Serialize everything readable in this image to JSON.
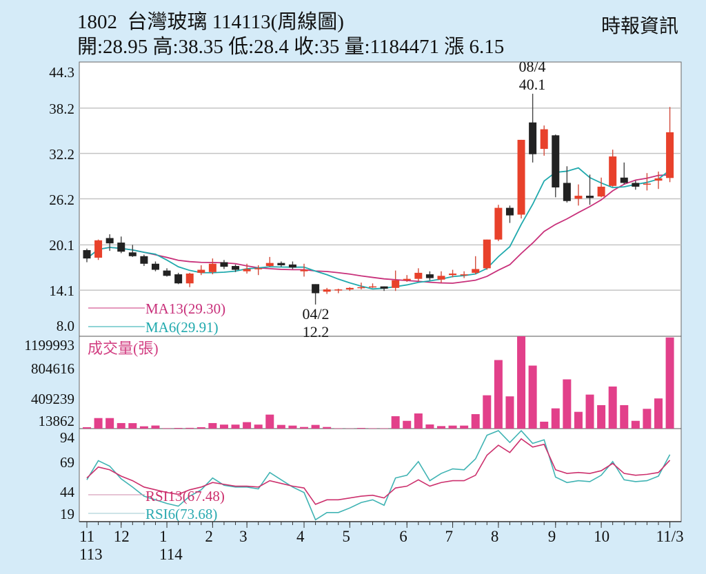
{
  "header": {
    "title": "1802  台灣玻璃 114113(周線圖)",
    "ohlc_line": "開:28.95 高:38.35 低:28.4 收:35 量:1184471 漲 6.15",
    "source": "時報資訊"
  },
  "colors": {
    "up": "#e8412b",
    "down": "#222222",
    "volume": "#e2408a",
    "ma13": "#c8307a",
    "ma6": "#1fa9ad",
    "rsi13": "#cc2f6c",
    "rsi6": "#3fb3b3",
    "background": "#d5ebf8"
  },
  "chart_data": [
    {
      "type": "candlestick",
      "ylim": [
        8.0,
        44.3
      ],
      "y_ticks": [
        "44.3",
        "38.2",
        "32.2",
        "26.2",
        "20.1",
        "14.1",
        "8.0"
      ],
      "grid": true,
      "legend": [
        "MA13(29.30)",
        "MA6(29.91)"
      ],
      "annotations": [
        {
          "date": "08/4",
          "value": "40.1"
        },
        {
          "date": "04/2",
          "value": "12.2"
        }
      ],
      "ohlc": [
        [
          19.4,
          18.3,
          19.6,
          17.8
        ],
        [
          18.4,
          20.7,
          20.8,
          18.1
        ],
        [
          21.0,
          20.3,
          21.5,
          19.3
        ],
        [
          20.4,
          19.2,
          21.2,
          19.0
        ],
        [
          19.1,
          18.6,
          20.1,
          18.5
        ],
        [
          18.6,
          17.6,
          18.8,
          17.3
        ],
        [
          17.6,
          16.8,
          17.9,
          16.6
        ],
        [
          16.7,
          16.0,
          17.0,
          15.9
        ],
        [
          16.2,
          15.0,
          16.4,
          14.9
        ],
        [
          15.0,
          16.3,
          16.4,
          14.5
        ],
        [
          16.4,
          16.8,
          17.4,
          16.1
        ],
        [
          16.5,
          17.6,
          18.3,
          16.2
        ],
        [
          17.8,
          17.2,
          18.1,
          16.9
        ],
        [
          17.3,
          16.8,
          17.5,
          16.5
        ],
        [
          16.6,
          16.9,
          17.6,
          16.3
        ],
        [
          17.0,
          17.0,
          17.4,
          16.1
        ],
        [
          17.3,
          17.7,
          18.5,
          17.2
        ],
        [
          17.7,
          17.4,
          17.9,
          17.2
        ],
        [
          17.5,
          17.1,
          17.9,
          16.9
        ],
        [
          16.6,
          16.8,
          17.6,
          15.9
        ],
        [
          14.9,
          13.7,
          14.9,
          12.2
        ],
        [
          13.9,
          14.2,
          14.4,
          13.6
        ],
        [
          14.2,
          14.2,
          14.3,
          13.7
        ],
        [
          14.2,
          14.4,
          14.5,
          14.0
        ],
        [
          14.5,
          14.5,
          15.1,
          14.2
        ],
        [
          14.6,
          14.6,
          15.0,
          14.4
        ],
        [
          14.6,
          14.3,
          14.6,
          14.0
        ],
        [
          14.4,
          15.4,
          16.7,
          14.0
        ],
        [
          15.4,
          15.6,
          16.1,
          15.2
        ],
        [
          15.6,
          16.4,
          17.0,
          15.3
        ],
        [
          16.2,
          15.7,
          16.6,
          15.4
        ],
        [
          15.5,
          16.0,
          16.6,
          15.1
        ],
        [
          16.1,
          16.3,
          16.8,
          15.8
        ],
        [
          16.2,
          16.2,
          16.6,
          15.7
        ],
        [
          16.4,
          16.9,
          18.6,
          16.2
        ],
        [
          17.0,
          20.8,
          20.8,
          16.8
        ],
        [
          20.8,
          25.0,
          25.4,
          20.6
        ],
        [
          25.0,
          24.0,
          25.3,
          23.0
        ],
        [
          24.1,
          34.0,
          34.0,
          23.6
        ],
        [
          36.3,
          32.1,
          40.1,
          31.0
        ],
        [
          32.8,
          35.4,
          35.9,
          31.9
        ],
        [
          34.6,
          27.7,
          34.7,
          26.4
        ],
        [
          28.3,
          25.9,
          30.5,
          25.7
        ],
        [
          26.2,
          26.6,
          28.1,
          25.3
        ],
        [
          26.6,
          26.3,
          29.4,
          25.4
        ],
        [
          26.5,
          27.8,
          29.0,
          26.4
        ],
        [
          27.9,
          31.8,
          32.7,
          27.8
        ],
        [
          29.0,
          28.3,
          31.0,
          28.1
        ],
        [
          28.3,
          27.8,
          28.6,
          27.4
        ],
        [
          28.2,
          28.2,
          29.6,
          27.3
        ],
        [
          28.6,
          28.9,
          29.8,
          27.5
        ],
        [
          28.95,
          35.0,
          38.35,
          28.4
        ]
      ]
    },
    {
      "type": "bar",
      "label": "成交量(張)",
      "ylim": [
        0,
        1199993
      ],
      "y_ticks": [
        "1199993",
        "804616",
        "409239",
        "13862"
      ],
      "values": [
        18000,
        137000,
        137000,
        72000,
        71000,
        30000,
        40000,
        6000,
        9000,
        10000,
        18000,
        72000,
        52000,
        52000,
        84000,
        52000,
        182000,
        48000,
        39000,
        21000,
        48000,
        21000,
        5000,
        3000,
        9000,
        5000,
        5000,
        161000,
        101000,
        197000,
        54000,
        33000,
        39000,
        39000,
        188000,
        433000,
        891000,
        419000,
        1199993,
        819000,
        90000,
        263000,
        640000,
        218000,
        442000,
        305000,
        547000,
        305000,
        101000,
        257000,
        392000,
        1184471
      ]
    },
    {
      "type": "line",
      "ylim": [
        0,
        100
      ],
      "y_ticks": [
        "94",
        "69",
        "44",
        "19"
      ],
      "series": [
        {
          "name": "RSI13(67.48)",
          "values": [
            48,
            60,
            57,
            50,
            45,
            38,
            35,
            32,
            30,
            35,
            38,
            43,
            41,
            39,
            39,
            38,
            45,
            42,
            39,
            37,
            19,
            24,
            24,
            26,
            28,
            29,
            26,
            37,
            39,
            46,
            39,
            43,
            45,
            45,
            51,
            73,
            84,
            76,
            91,
            82,
            85,
            57,
            53,
            54,
            53,
            56,
            64,
            53,
            51,
            52,
            54,
            67.48
          ]
        },
        {
          "name": "RSI6(73.68)",
          "values": [
            46,
            67,
            61,
            47,
            38,
            28,
            24,
            20,
            17,
            28,
            35,
            48,
            40,
            38,
            38,
            36,
            54,
            46,
            38,
            32,
            2,
            10,
            10,
            15,
            21,
            24,
            18,
            48,
            51,
            66,
            45,
            53,
            58,
            57,
            69,
            95,
            100,
            87,
            100,
            86,
            90,
            49,
            43,
            45,
            44,
            51,
            66,
            46,
            44,
            45,
            50,
            73.68
          ]
        }
      ]
    }
  ],
  "x_axis": {
    "ticks": [
      {
        "index": 0,
        "label": "11",
        "sub": "113"
      },
      {
        "index": 3,
        "label": "12"
      },
      {
        "index": 7,
        "label": "1",
        "sub": "114"
      },
      {
        "index": 11,
        "label": "2"
      },
      {
        "index": 14,
        "label": "3"
      },
      {
        "index": 19,
        "label": "4"
      },
      {
        "index": 23,
        "label": "5"
      },
      {
        "index": 28,
        "label": "6"
      },
      {
        "index": 32,
        "label": "7"
      },
      {
        "index": 36,
        "label": "8"
      },
      {
        "index": 41,
        "label": "9"
      },
      {
        "index": 45,
        "label": "10"
      },
      {
        "index": 51,
        "label": "11/3"
      }
    ]
  }
}
